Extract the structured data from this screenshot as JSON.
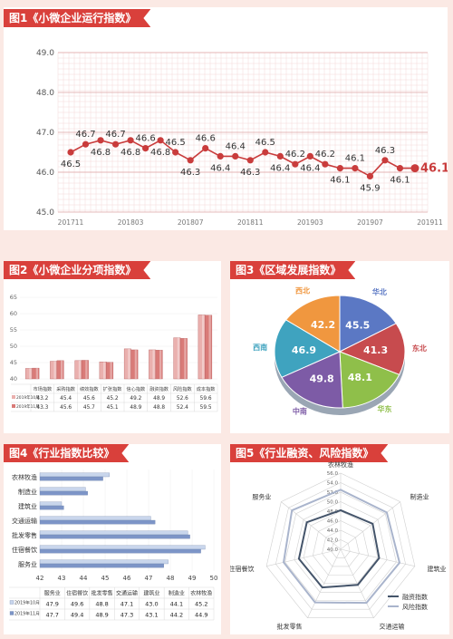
{
  "titles": {
    "fig1": "图1《小微企业运行指数》",
    "fig2": "图2《小微企业分项指数》",
    "fig3": "图3《区域发展指数》",
    "fig4": "图4《行业指数比较》",
    "fig5": "图5《行业融资、风险指数》"
  },
  "colors": {
    "accent": "#d9403b",
    "bg": "#fbe9e4"
  },
  "chart_data": [
    {
      "id": "fig1",
      "type": "line",
      "ylim": [
        45.0,
        49.0
      ],
      "yticks": [
        "45.0",
        "46.0",
        "47.0",
        "48.0",
        "49.0"
      ],
      "x_tick_labels": [
        "201711",
        "201803",
        "201807",
        "201811",
        "201903",
        "201907",
        "201911"
      ],
      "values": [
        46.5,
        46.7,
        46.8,
        46.7,
        46.8,
        46.6,
        46.8,
        46.5,
        46.3,
        46.6,
        46.4,
        46.4,
        46.3,
        46.5,
        46.4,
        46.2,
        46.4,
        46.2,
        46.1,
        46.1,
        45.9,
        46.3,
        46.1,
        46.1
      ],
      "labels": [
        "46.5",
        "46.7",
        "46.8",
        "46.7",
        "46.8",
        "46.6",
        "46.8",
        "46.5",
        "46.3",
        "46.6",
        "46.4",
        "46.4",
        "46.3",
        "46.5",
        "46.4",
        "46.2",
        "46.4",
        "46.2",
        "46.1",
        "46.1",
        "45.9",
        "46.3",
        "46.1",
        "46.1"
      ],
      "color": "#c93c3c"
    },
    {
      "id": "fig2",
      "type": "bar",
      "categories": [
        "市场指数",
        "采购指数",
        "绩效指数",
        "扩张指数",
        "信心指数",
        "融资指数",
        "风险指数",
        "成本指数"
      ],
      "ylim": [
        40,
        65
      ],
      "yticks": [
        "40",
        "45",
        "50",
        "55",
        "60",
        "65"
      ],
      "series": [
        {
          "name": "2019年10月",
          "values": [
            43.2,
            45.4,
            45.6,
            45.2,
            49.2,
            48.9,
            52.6,
            59.6
          ],
          "labels": [
            "43.2",
            "45.4",
            "45.6",
            "45.2",
            "49.2",
            "48.9",
            "52.6",
            "59.6"
          ]
        },
        {
          "name": "2019年11月",
          "values": [
            43.3,
            45.6,
            45.7,
            45.1,
            48.9,
            48.8,
            52.4,
            59.5
          ],
          "labels": [
            "43.3",
            "45.6",
            "45.7",
            "45.1",
            "48.9",
            "48.8",
            "52.4",
            "59.5"
          ]
        }
      ]
    },
    {
      "id": "fig3",
      "type": "pie",
      "slices": [
        {
          "name": "华北",
          "value": 45.5,
          "label": "45.5",
          "color": "#5b78c4"
        },
        {
          "name": "东北",
          "value": 41.3,
          "label": "41.3",
          "color": "#c74b4e"
        },
        {
          "name": "华东",
          "value": 48.1,
          "label": "48.1",
          "color": "#8fbf4a"
        },
        {
          "name": "中南",
          "value": 49.8,
          "label": "49.8",
          "color": "#7d5ba6"
        },
        {
          "name": "西南",
          "value": 46.9,
          "label": "46.9",
          "color": "#3fa3bf"
        },
        {
          "name": "西北",
          "value": 42.2,
          "label": "42.2",
          "color": "#f0973f"
        }
      ]
    },
    {
      "id": "fig4",
      "type": "bar",
      "orientation": "horizontal",
      "categories": [
        "农林牧渔",
        "制造业",
        "建筑业",
        "交通运输",
        "批发零售",
        "住宿餐饮",
        "服务业"
      ],
      "table_header": [
        "服务业",
        "住宿餐饮",
        "批发零售",
        "交通运输",
        "建筑业",
        "制造业",
        "农林牧渔"
      ],
      "xlim": [
        42,
        50
      ],
      "xticks": [
        "42",
        "43",
        "44",
        "45",
        "46",
        "47",
        "48",
        "49",
        "50"
      ],
      "series": [
        {
          "name": "2019年10月",
          "values": [
            45.2,
            44.1,
            43.0,
            47.1,
            48.8,
            49.6,
            47.9
          ],
          "labels": [
            "47.9",
            "49.6",
            "48.8",
            "47.1",
            "43.0",
            "44.1",
            "45.2"
          ]
        },
        {
          "name": "2019年11月",
          "values": [
            44.9,
            44.2,
            43.1,
            47.3,
            48.9,
            49.4,
            47.7
          ],
          "labels": [
            "47.7",
            "49.4",
            "48.9",
            "47.3",
            "43.1",
            "44.2",
            "44.9"
          ]
        }
      ]
    },
    {
      "id": "fig5",
      "type": "radar",
      "categories": [
        "农林牧渔",
        "制造业",
        "建筑业",
        "交通运输",
        "批发零售",
        "住宿餐饮",
        "服务业"
      ],
      "rlim": [
        40,
        56
      ],
      "rticks": [
        "40.0",
        "42.0",
        "44.0",
        "46.0",
        "48.0",
        "50.0",
        "52.0",
        "54.0",
        "56.0"
      ],
      "series": [
        {
          "name": "融资指数",
          "values": [
            48.2,
            48.6,
            48.3,
            48.3,
            48.9,
            49.0,
            49.1
          ],
          "color": "#44546a"
        },
        {
          "name": "风险指数",
          "values": [
            52.5,
            52.4,
            52.7,
            52.5,
            52.4,
            52.3,
            53.1
          ],
          "color": "#a9b4cc"
        }
      ]
    }
  ]
}
